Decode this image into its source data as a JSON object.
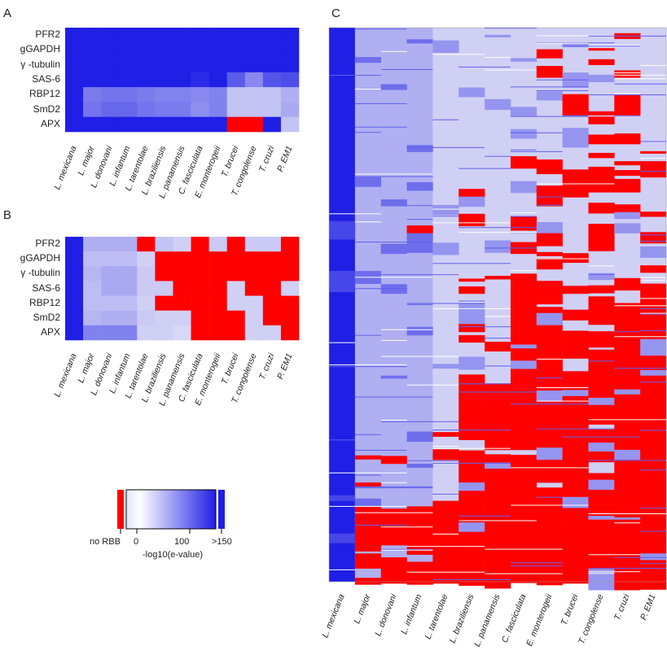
{
  "panels": {
    "a": "A",
    "b": "B",
    "c": "C"
  },
  "colors": {
    "max_blue": "#1f1fe6",
    "low": "#e4e4f7",
    "no_rbb": "#ff0000"
  },
  "legend": {
    "no_rbb_label": "no RBB",
    "tick_0": "0",
    "tick_100": "100",
    "tick_150": ">150",
    "axis_label": "-log10(e-value)"
  },
  "chart_data": [
    {
      "panel": "A",
      "type": "heatmap",
      "rows": [
        "PFR2",
        "gGAPDH",
        "γ -tubulin",
        "SAS-6",
        "RBP12",
        "SmD2",
        "APX"
      ],
      "columns": [
        "L. mexicana",
        "L. major",
        "L. donovani",
        "L. infantum",
        "L. tarentolae",
        "L. braziliensis",
        "L. panamensis",
        "C. fasciculata",
        "E. monterogeii",
        "T. brucei",
        "T. congolense",
        "T. cruzi",
        "P. EM1"
      ],
      "scale": "-log10(e-value), capped at >150; -1 = no RBB",
      "values": [
        [
          150,
          150,
          150,
          150,
          150,
          150,
          150,
          150,
          150,
          150,
          150,
          150,
          150
        ],
        [
          150,
          150,
          150,
          150,
          150,
          150,
          150,
          150,
          150,
          150,
          150,
          150,
          150
        ],
        [
          150,
          150,
          150,
          150,
          150,
          150,
          150,
          150,
          150,
          150,
          150,
          150,
          150
        ],
        [
          150,
          150,
          150,
          150,
          150,
          150,
          150,
          140,
          150,
          105,
          70,
          110,
          115
        ],
        [
          150,
          80,
          85,
          85,
          80,
          75,
          75,
          70,
          75,
          25,
          25,
          25,
          40
        ],
        [
          150,
          85,
          95,
          95,
          85,
          80,
          80,
          65,
          75,
          25,
          25,
          25,
          45
        ],
        [
          150,
          150,
          150,
          150,
          150,
          150,
          150,
          150,
          150,
          -1,
          -1,
          150,
          25
        ]
      ]
    },
    {
      "panel": "B",
      "type": "heatmap",
      "rows": [
        "PFR2",
        "gGAPDH",
        "γ -tubulin",
        "SAS-6",
        "RBP12",
        "SmD2",
        "APX"
      ],
      "columns": [
        "L. mexicana",
        "L. major",
        "L. donovani",
        "L. infantum",
        "L. tarentolae",
        "L. braziliensis",
        "L. panamensis",
        "C. fasciculata",
        "E. monterogeii",
        "T. brucei",
        "T. congolense",
        "T. cruzi",
        "P. EM1"
      ],
      "scale": "-log10(e-value), capped at >150; -1 = no RBB",
      "values": [
        [
          150,
          40,
          40,
          40,
          -1,
          25,
          15,
          -1,
          20,
          -1,
          20,
          20,
          -1
        ],
        [
          150,
          30,
          30,
          30,
          15,
          -1,
          -1,
          -1,
          -1,
          -1,
          -1,
          -1,
          -1
        ],
        [
          150,
          35,
          45,
          45,
          20,
          -1,
          -1,
          -1,
          -1,
          -1,
          -1,
          -1,
          -1
        ],
        [
          150,
          30,
          45,
          45,
          20,
          20,
          -1,
          -1,
          -1,
          15,
          -1,
          -1,
          15
        ],
        [
          150,
          30,
          30,
          30,
          15,
          -1,
          -1,
          -1,
          -1,
          15,
          15,
          -1,
          -1
        ],
        [
          150,
          35,
          40,
          40,
          20,
          15,
          15,
          -1,
          -1,
          -1,
          15,
          -1,
          -1
        ],
        [
          150,
          75,
          75,
          75,
          15,
          15,
          10,
          -1,
          -1,
          -1,
          15,
          15,
          -1
        ]
      ]
    },
    {
      "panel": "C",
      "type": "heatmap",
      "columns": [
        "L. mexicana",
        "L. major",
        "L. donovani",
        "L. infantum",
        "L. tarentolae",
        "L. braziliensis",
        "L. panamensis",
        "C. fasciculata",
        "E. monterogeii",
        "T. brucei",
        "T. congolense",
        "T. cruzi",
        "P. EM1"
      ],
      "scale": "-log10(e-value), capped at >150; -1 = no RBB",
      "note": "genome-wide matrix of reciprocal best BLAST hits; rows individual genes",
      "row_count": 1000
    }
  ]
}
